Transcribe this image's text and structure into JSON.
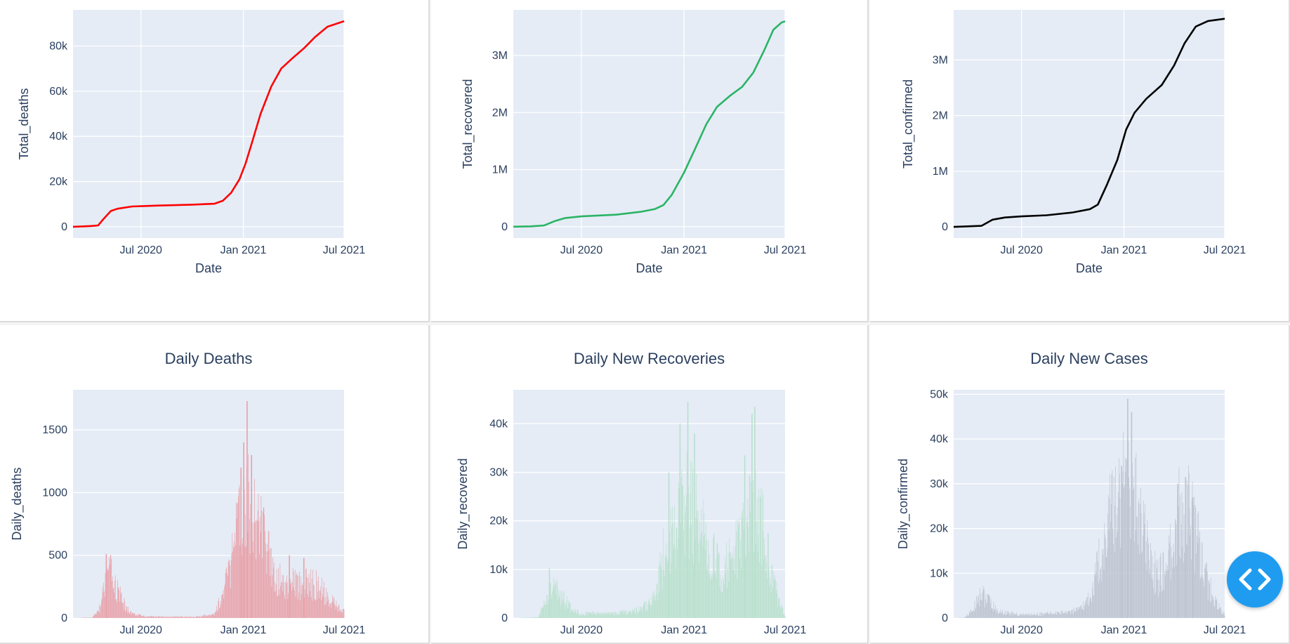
{
  "fab": {
    "icon": "code-icon",
    "color": "#1f9cf0"
  },
  "chart_data": [
    {
      "type": "line",
      "title": "",
      "xlabel": "Date",
      "ylabel": "Total_deaths",
      "color": "#ff0000",
      "xlim": [
        "2020-03-01",
        "2021-07-01"
      ],
      "ylim": [
        -5000,
        96000
      ],
      "xticks": [
        {
          "date": "2020-07-01",
          "label": "Jul 2020"
        },
        {
          "date": "2021-01-01",
          "label": "Jan 2021"
        },
        {
          "date": "2021-07-01",
          "label": "Jul 2021"
        }
      ],
      "yticks": [
        {
          "v": 0,
          "label": "0"
        },
        {
          "v": 20000,
          "label": "20k"
        },
        {
          "v": 40000,
          "label": "40k"
        },
        {
          "v": 60000,
          "label": "60k"
        },
        {
          "v": 80000,
          "label": "80k"
        }
      ],
      "points": [
        [
          "2020-03-01",
          0
        ],
        [
          "2020-04-01",
          300
        ],
        [
          "2020-04-15",
          600
        ],
        [
          "2020-04-25",
          3500
        ],
        [
          "2020-05-08",
          7000
        ],
        [
          "2020-05-20",
          8000
        ],
        [
          "2020-06-15",
          9000
        ],
        [
          "2020-08-01",
          9400
        ],
        [
          "2020-10-01",
          9800
        ],
        [
          "2020-11-10",
          10200
        ],
        [
          "2020-11-25",
          11500
        ],
        [
          "2020-12-10",
          15000
        ],
        [
          "2020-12-25",
          21000
        ],
        [
          "2021-01-05",
          28000
        ],
        [
          "2021-01-15",
          36000
        ],
        [
          "2021-02-01",
          50000
        ],
        [
          "2021-02-20",
          62000
        ],
        [
          "2021-03-10",
          70000
        ],
        [
          "2021-04-01",
          75000
        ],
        [
          "2021-04-20",
          79000
        ],
        [
          "2021-05-10",
          84000
        ],
        [
          "2021-06-01",
          88500
        ],
        [
          "2021-07-01",
          91000
        ]
      ]
    },
    {
      "type": "line",
      "title": "",
      "xlabel": "Date",
      "ylabel": "Total_recovered",
      "color": "#2ab465",
      "xlim": [
        "2020-03-01",
        "2021-07-01"
      ],
      "ylim": [
        -200000,
        3800000
      ],
      "xticks": [
        {
          "date": "2020-07-01",
          "label": "Jul 2020"
        },
        {
          "date": "2021-01-01",
          "label": "Jan 2021"
        },
        {
          "date": "2021-07-01",
          "label": "Jul 2021"
        }
      ],
      "yticks": [
        {
          "v": 0,
          "label": "0"
        },
        {
          "v": 1000000,
          "label": "1M"
        },
        {
          "v": 2000000,
          "label": "2M"
        },
        {
          "v": 3000000,
          "label": "3M"
        }
      ],
      "points": [
        [
          "2020-03-01",
          0
        ],
        [
          "2020-04-01",
          5000
        ],
        [
          "2020-04-25",
          20000
        ],
        [
          "2020-05-15",
          100000
        ],
        [
          "2020-06-01",
          150000
        ],
        [
          "2020-07-01",
          180000
        ],
        [
          "2020-09-01",
          210000
        ],
        [
          "2020-10-15",
          260000
        ],
        [
          "2020-11-10",
          310000
        ],
        [
          "2020-11-25",
          380000
        ],
        [
          "2020-12-10",
          560000
        ],
        [
          "2021-01-01",
          950000
        ],
        [
          "2021-01-20",
          1350000
        ],
        [
          "2021-02-10",
          1800000
        ],
        [
          "2021-03-01",
          2100000
        ],
        [
          "2021-03-25",
          2300000
        ],
        [
          "2021-04-15",
          2450000
        ],
        [
          "2021-05-05",
          2700000
        ],
        [
          "2021-05-25",
          3100000
        ],
        [
          "2021-06-10",
          3450000
        ],
        [
          "2021-06-25",
          3580000
        ],
        [
          "2021-07-01",
          3600000
        ]
      ]
    },
    {
      "type": "line",
      "title": "",
      "xlabel": "Date",
      "ylabel": "Total_confirmed",
      "color": "#000000",
      "xlim": [
        "2020-03-01",
        "2021-07-01"
      ],
      "ylim": [
        -200000,
        3900000
      ],
      "xticks": [
        {
          "date": "2020-07-01",
          "label": "Jul 2020"
        },
        {
          "date": "2021-01-01",
          "label": "Jan 2021"
        },
        {
          "date": "2021-07-01",
          "label": "Jul 2021"
        }
      ],
      "yticks": [
        {
          "v": 0,
          "label": "0"
        },
        {
          "v": 1000000,
          "label": "1M"
        },
        {
          "v": 2000000,
          "label": "2M"
        },
        {
          "v": 3000000,
          "label": "3M"
        }
      ],
      "points": [
        [
          "2020-03-01",
          0
        ],
        [
          "2020-04-20",
          20000
        ],
        [
          "2020-05-10",
          130000
        ],
        [
          "2020-06-01",
          170000
        ],
        [
          "2020-07-01",
          190000
        ],
        [
          "2020-08-15",
          210000
        ],
        [
          "2020-10-01",
          260000
        ],
        [
          "2020-11-01",
          320000
        ],
        [
          "2020-11-15",
          400000
        ],
        [
          "2020-12-01",
          750000
        ],
        [
          "2020-12-20",
          1200000
        ],
        [
          "2021-01-05",
          1750000
        ],
        [
          "2021-01-20",
          2050000
        ],
        [
          "2021-02-10",
          2300000
        ],
        [
          "2021-03-10",
          2550000
        ],
        [
          "2021-04-01",
          2900000
        ],
        [
          "2021-04-20",
          3300000
        ],
        [
          "2021-05-10",
          3600000
        ],
        [
          "2021-06-01",
          3700000
        ],
        [
          "2021-07-01",
          3740000
        ]
      ]
    },
    {
      "type": "bar",
      "title": "Daily Deaths",
      "xlabel": "",
      "ylabel": "Daily_deaths",
      "color": "#e8a0a8",
      "xlim": [
        "2020-03-01",
        "2021-07-01"
      ],
      "ylim": [
        0,
        1820
      ],
      "xticks": [
        {
          "date": "2020-07-01",
          "label": "Jul 2020"
        },
        {
          "date": "2021-01-01",
          "label": "Jan 2021"
        },
        {
          "date": "2021-07-01",
          "label": "Jul 2021"
        }
      ],
      "yticks": [
        {
          "v": 0,
          "label": "0"
        },
        {
          "v": 500,
          "label": "500"
        },
        {
          "v": 1000,
          "label": "1000"
        },
        {
          "v": 1500,
          "label": "1500"
        }
      ],
      "envelope": [
        [
          "2020-03-01",
          0
        ],
        [
          "2020-04-05",
          5
        ],
        [
          "2020-04-18",
          80
        ],
        [
          "2020-04-28",
          300
        ],
        [
          "2020-05-05",
          420
        ],
        [
          "2020-05-12",
          320
        ],
        [
          "2020-05-22",
          220
        ],
        [
          "2020-06-05",
          80
        ],
        [
          "2020-06-20",
          30
        ],
        [
          "2020-07-10",
          15
        ],
        [
          "2020-09-01",
          10
        ],
        [
          "2020-10-15",
          12
        ],
        [
          "2020-11-10",
          40
        ],
        [
          "2020-11-25",
          200
        ],
        [
          "2020-12-10",
          480
        ],
        [
          "2020-12-25",
          850
        ],
        [
          "2021-01-08",
          1100
        ],
        [
          "2021-01-18",
          1000
        ],
        [
          "2021-02-01",
          800
        ],
        [
          "2021-02-15",
          560
        ],
        [
          "2021-03-01",
          380
        ],
        [
          "2021-03-15",
          300
        ],
        [
          "2021-04-05",
          310
        ],
        [
          "2021-04-25",
          300
        ],
        [
          "2021-05-15",
          280
        ],
        [
          "2021-06-01",
          180
        ],
        [
          "2021-06-20",
          90
        ],
        [
          "2021-07-01",
          60
        ]
      ],
      "spikes": [
        [
          "2020-04-30",
          510
        ],
        [
          "2021-01-08",
          1730
        ],
        [
          "2021-01-02",
          1400
        ],
        [
          "2021-01-16",
          1300
        ],
        [
          "2020-12-28",
          1200
        ],
        [
          "2021-03-25",
          500
        ],
        [
          "2021-04-20",
          480
        ]
      ]
    },
    {
      "type": "bar",
      "title": "Daily New Recoveries",
      "xlabel": "",
      "ylabel": "Daily_recovered",
      "color": "#b8e0cc",
      "xlim": [
        "2020-03-01",
        "2021-07-01"
      ],
      "ylim": [
        0,
        47000
      ],
      "xticks": [
        {
          "date": "2020-07-01",
          "label": "Jul 2020"
        },
        {
          "date": "2021-01-01",
          "label": "Jan 2021"
        },
        {
          "date": "2021-07-01",
          "label": "Jul 2021"
        }
      ],
      "yticks": [
        {
          "v": 0,
          "label": "0"
        },
        {
          "v": 10000,
          "label": "10k"
        },
        {
          "v": 20000,
          "label": "20k"
        },
        {
          "v": 30000,
          "label": "30k"
        },
        {
          "v": 40000,
          "label": "40k"
        }
      ],
      "envelope": [
        [
          "2020-03-01",
          0
        ],
        [
          "2020-04-15",
          200
        ],
        [
          "2020-04-25",
          3000
        ],
        [
          "2020-05-10",
          6500
        ],
        [
          "2020-05-25",
          5500
        ],
        [
          "2020-06-10",
          2500
        ],
        [
          "2020-07-01",
          1000
        ],
        [
          "2020-09-01",
          1000
        ],
        [
          "2020-10-15",
          2000
        ],
        [
          "2020-11-10",
          4500
        ],
        [
          "2020-11-25",
          14000
        ],
        [
          "2020-12-15",
          22000
        ],
        [
          "2021-01-05",
          26000
        ],
        [
          "2021-01-25",
          22000
        ],
        [
          "2021-02-15",
          15000
        ],
        [
          "2021-03-10",
          11000
        ],
        [
          "2021-04-01",
          14000
        ],
        [
          "2021-04-25",
          22000
        ],
        [
          "2021-05-10",
          24000
        ],
        [
          "2021-05-25",
          18000
        ],
        [
          "2021-06-10",
          8000
        ],
        [
          "2021-06-25",
          2500
        ],
        [
          "2021-07-01",
          500
        ]
      ],
      "spikes": [
        [
          "2020-05-05",
          10200
        ],
        [
          "2021-01-08",
          44500
        ],
        [
          "2020-12-25",
          40000
        ],
        [
          "2021-01-20",
          38000
        ],
        [
          "2021-05-08",
          43500
        ],
        [
          "2021-05-03",
          42000
        ],
        [
          "2021-04-20",
          33500
        ],
        [
          "2020-12-05",
          30000
        ]
      ]
    },
    {
      "type": "bar",
      "title": "Daily New Cases",
      "xlabel": "",
      "ylabel": "Daily_confirmed",
      "color": "#bcc3cf",
      "xlim": [
        "2020-03-01",
        "2021-07-01"
      ],
      "ylim": [
        0,
        51000
      ],
      "xticks": [
        {
          "date": "2020-07-01",
          "label": "Jul 2020"
        },
        {
          "date": "2021-01-01",
          "label": "Jan 2021"
        },
        {
          "date": "2021-07-01",
          "label": "Jul 2021"
        }
      ],
      "yticks": [
        {
          "v": 0,
          "label": "0"
        },
        {
          "v": 10000,
          "label": "10k"
        },
        {
          "v": 20000,
          "label": "20k"
        },
        {
          "v": 30000,
          "label": "30k"
        },
        {
          "v": 40000,
          "label": "40k"
        },
        {
          "v": 50000,
          "label": "50k"
        }
      ],
      "envelope": [
        [
          "2020-03-01",
          0
        ],
        [
          "2020-03-20",
          100
        ],
        [
          "2020-04-05",
          2000
        ],
        [
          "2020-04-18",
          6500
        ],
        [
          "2020-05-01",
          4500
        ],
        [
          "2020-05-20",
          1500
        ],
        [
          "2020-07-01",
          800
        ],
        [
          "2020-09-01",
          1200
        ],
        [
          "2020-10-15",
          2000
        ],
        [
          "2020-11-05",
          6000
        ],
        [
          "2020-11-20",
          16000
        ],
        [
          "2020-12-10",
          26000
        ],
        [
          "2021-01-01",
          33000
        ],
        [
          "2021-01-20",
          29000
        ],
        [
          "2021-02-10",
          18000
        ],
        [
          "2021-03-01",
          10000
        ],
        [
          "2021-03-20",
          13000
        ],
        [
          "2021-04-10",
          25000
        ],
        [
          "2021-04-25",
          28000
        ],
        [
          "2021-05-10",
          21000
        ],
        [
          "2021-05-25",
          11000
        ],
        [
          "2021-06-15",
          3500
        ],
        [
          "2021-07-01",
          1000
        ]
      ],
      "spikes": [
        [
          "2021-01-08",
          49000
        ],
        [
          "2021-01-15",
          46000
        ],
        [
          "2020-12-28",
          34000
        ],
        [
          "2021-04-22",
          31500
        ],
        [
          "2021-04-08",
          30000
        ],
        [
          "2021-05-05",
          27000
        ]
      ]
    }
  ]
}
